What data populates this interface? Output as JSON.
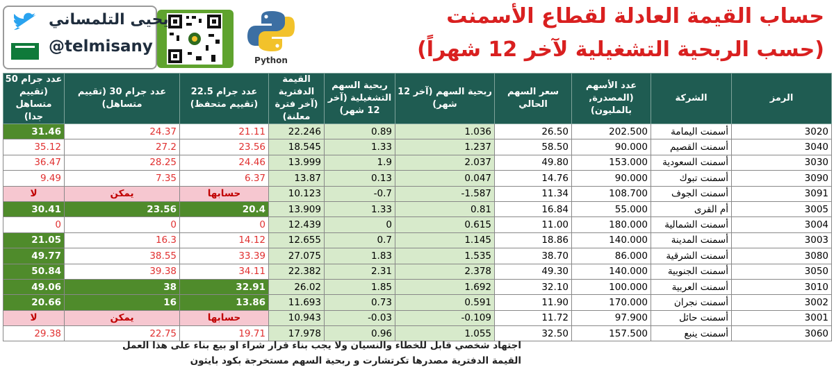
{
  "header": {
    "title_line1": "حساب القيمة العادلة لقطاع الأسمنت",
    "title_line2": "(حسب الربحية التشغيلية لآخر 12 شهراً)",
    "python_label": "Python",
    "author_name": "يحيى التلمساني",
    "author_handle": "@telmisany"
  },
  "columns": [
    "الرمز",
    "الشركة",
    "عدد الأسهم (المصدرة, بالمليون)",
    "سعر السهم الحالي",
    "ربحية السهم (آخر 12 شهر)",
    "ربحية السهم التشغيلية (آخر 12 شهر)",
    "القيمة الدفترية (آخر فترة معلنة)",
    "عدد جرام 22.5 (تقييم متحفظ)",
    "عدد جرام 30 (تقييم متساهل)",
    "عدد جرام 50 (تقييم متساهل جدا)"
  ],
  "rows": [
    {
      "code": "3020",
      "name": "أسمنت اليمامة",
      "shares": "202.500",
      "price": "26.50",
      "eps": "1.036",
      "op_eps": "0.89",
      "book": "22.246",
      "v22": "21.11",
      "v30": "24.37",
      "v50": "31.46"
    },
    {
      "code": "3040",
      "name": "أسمنت القصيم",
      "shares": "90.000",
      "price": "58.50",
      "eps": "1.237",
      "op_eps": "1.33",
      "book": "18.545",
      "v22": "23.56",
      "v30": "27.2",
      "v50": "35.12"
    },
    {
      "code": "3030",
      "name": "أسمنت السعودية",
      "shares": "153.000",
      "price": "49.80",
      "eps": "2.037",
      "op_eps": "1.9",
      "book": "13.999",
      "v22": "24.46",
      "v30": "28.25",
      "v50": "36.47"
    },
    {
      "code": "3090",
      "name": "أسمنت تبوك",
      "shares": "90.000",
      "price": "14.76",
      "eps": "0.047",
      "op_eps": "0.13",
      "book": "13.87",
      "v22": "6.37",
      "v30": "7.35",
      "v50": "9.49"
    },
    {
      "code": "3091",
      "name": "أسمنت الجوف",
      "shares": "108.700",
      "price": "11.34",
      "eps": "-1.587",
      "op_eps": "-0.7",
      "book": "10.123",
      "v22": "حسابها",
      "v30": "يمكن",
      "v50": "لا"
    },
    {
      "code": "3005",
      "name": "أم القرى",
      "shares": "55.000",
      "price": "16.84",
      "eps": "0.81",
      "op_eps": "1.33",
      "book": "13.909",
      "v22": "20.4",
      "v30": "23.56",
      "v50": "30.41"
    },
    {
      "code": "3004",
      "name": "أسمنت الشمالية",
      "shares": "180.000",
      "price": "11.00",
      "eps": "0.615",
      "op_eps": "0",
      "book": "12.439",
      "v22": "0",
      "v30": "0",
      "v50": "0"
    },
    {
      "code": "3003",
      "name": "أسمنت المدينة",
      "shares": "140.000",
      "price": "18.86",
      "eps": "1.145",
      "op_eps": "0.7",
      "book": "12.655",
      "v22": "14.12",
      "v30": "16.3",
      "v50": "21.05"
    },
    {
      "code": "3080",
      "name": "أسمنت الشرقية",
      "shares": "86.000",
      "price": "38.70",
      "eps": "1.535",
      "op_eps": "1.83",
      "book": "27.075",
      "v22": "33.39",
      "v30": "38.55",
      "v50": "49.77"
    },
    {
      "code": "3050",
      "name": "أسمنت الجنوبية",
      "shares": "140.000",
      "price": "49.30",
      "eps": "2.378",
      "op_eps": "2.31",
      "book": "22.382",
      "v22": "34.11",
      "v30": "39.38",
      "v50": "50.84"
    },
    {
      "code": "3010",
      "name": "أسمنت العربية",
      "shares": "100.000",
      "price": "32.10",
      "eps": "1.692",
      "op_eps": "1.85",
      "book": "26.02",
      "v22": "32.91",
      "v30": "38",
      "v50": "49.06"
    },
    {
      "code": "3002",
      "name": "أسمنت نجران",
      "shares": "170.000",
      "price": "11.90",
      "eps": "0.591",
      "op_eps": "0.73",
      "book": "11.693",
      "v22": "13.86",
      "v30": "16",
      "v50": "20.66"
    },
    {
      "code": "3001",
      "name": "أسمنت حائل",
      "shares": "97.900",
      "price": "11.72",
      "eps": "-0.109",
      "op_eps": "-0.03",
      "book": "10.943",
      "v22": "حسابها",
      "v30": "يمكن",
      "v50": "لا"
    },
    {
      "code": "3060",
      "name": "أسمنت ينبع",
      "shares": "157.500",
      "price": "32.50",
      "eps": "1.055",
      "op_eps": "0.96",
      "book": "17.978",
      "v22": "19.71",
      "v30": "22.75",
      "v50": "29.38"
    }
  ],
  "notes": {
    "line1": "اجتهاد شخصي قابل للخطاء والنسيان ولا يجب بناء قرار شراء او بيع بناء على هذا العمل",
    "line2": "القيمة الدفترية مصدرها تكرتشارت و ربحية السهم مستخرجة بكود بايثون"
  },
  "colors": {
    "header_bg": "#1f5c52",
    "title_red": "#d92020",
    "good_green": "#4f8b2b",
    "light_green": "#d7eacb",
    "na_pink": "#f6c7d0"
  }
}
